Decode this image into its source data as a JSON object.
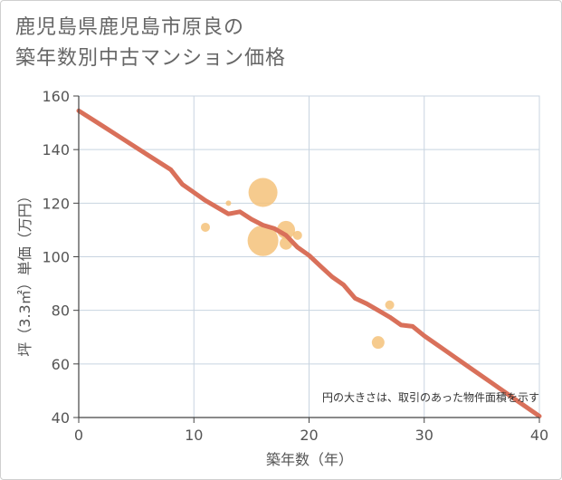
{
  "title": {
    "line1": "鹿児島県鹿児島市原良の",
    "line2": "築年数別中古マンション価格"
  },
  "chart_data": {
    "type": "scatter",
    "title": "鹿児島県鹿児島市原良の築年数別中古マンション価格",
    "xlabel": "築年数（年）",
    "ylabel": "坪（3.3㎡）単価（万円）",
    "xlim": [
      0,
      40
    ],
    "ylim": [
      40,
      160
    ],
    "xticks": [
      0,
      10,
      20,
      30,
      40
    ],
    "yticks": [
      40,
      60,
      80,
      100,
      120,
      140,
      160
    ],
    "grid": true,
    "note": "円の大きさは、取引のあった物件面積を示す",
    "bubbles": [
      {
        "x": 11,
        "y": 111,
        "r": 5
      },
      {
        "x": 13,
        "y": 120,
        "r": 3
      },
      {
        "x": 16,
        "y": 124,
        "r": 16
      },
      {
        "x": 16,
        "y": 106,
        "r": 17
      },
      {
        "x": 18,
        "y": 110,
        "r": 10
      },
      {
        "x": 18,
        "y": 105,
        "r": 7
      },
      {
        "x": 19,
        "y": 108,
        "r": 5
      },
      {
        "x": 26,
        "y": 68,
        "r": 7
      },
      {
        "x": 27,
        "y": 82,
        "r": 5
      }
    ],
    "trend": {
      "x": [
        0,
        2,
        4,
        6,
        8,
        9,
        10,
        11,
        12,
        13,
        14,
        15,
        16,
        17,
        18,
        19,
        20,
        21,
        22,
        23,
        24,
        25,
        26,
        27,
        28,
        29,
        30,
        32,
        34,
        36,
        38,
        40
      ],
      "y": [
        154.5,
        149,
        143.5,
        138,
        132.5,
        127,
        124,
        121,
        118.5,
        116,
        116.8,
        114,
        111.8,
        110.5,
        108,
        103.5,
        100.5,
        96.5,
        92.5,
        89.5,
        84.5,
        82.5,
        80,
        77.5,
        74.5,
        74,
        70.5,
        64.5,
        58.5,
        52.5,
        46.5,
        40.5
      ]
    },
    "colors": {
      "bubble": "#f5c27a",
      "trend": "#d9705a",
      "grid": "#c8d4e0",
      "axis": "#444444",
      "text": "#555555"
    }
  }
}
